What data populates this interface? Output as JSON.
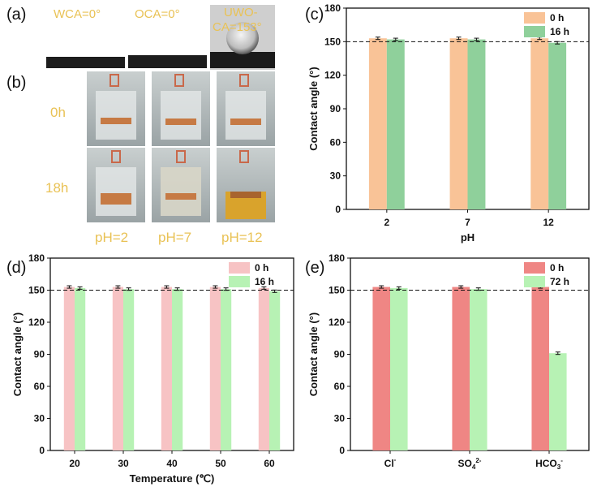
{
  "panel_labels": {
    "a": "(a)",
    "b": "(b)",
    "c": "(c)",
    "d": "(d)",
    "e": "(e)"
  },
  "panel_a": {
    "wca": "WCA=0°",
    "oca": "OCA=0°",
    "uwoca_line1": "UWO-",
    "uwoca_line2": "CA=153°"
  },
  "panel_b": {
    "row_0h": "0h",
    "row_18h": "18h",
    "ph_labels": [
      "pH=2",
      "pH=7",
      "pH=12"
    ]
  },
  "colors": {
    "c_0h": "#f9c397",
    "c_16h": "#8fd09b",
    "d_0h": "#f7c3c4",
    "d_16h": "#b7f2b4",
    "e_0h": "#ef8684",
    "e_72h": "#b7f2b4",
    "photo_text": "#e9c255"
  },
  "chart_data": [
    {
      "id": "c",
      "type": "bar",
      "categories": [
        "2",
        "7",
        "12"
      ],
      "series": [
        {
          "name": "0 h",
          "values": [
            153,
            153,
            153
          ]
        },
        {
          "name": "16 h",
          "values": [
            152,
            152,
            149
          ]
        }
      ],
      "xlabel": "pH",
      "ylabel": "Contact angle (°)",
      "ylim": [
        0,
        180
      ],
      "yticks": [
        0,
        30,
        60,
        90,
        120,
        150,
        180
      ],
      "reference_line": 150,
      "legend_position": "top-right"
    },
    {
      "id": "d",
      "type": "bar",
      "categories": [
        "20",
        "30",
        "40",
        "50",
        "60"
      ],
      "series": [
        {
          "name": "0 h",
          "values": [
            153,
            153,
            153,
            153,
            152
          ]
        },
        {
          "name": "16 h",
          "values": [
            152,
            151,
            151,
            151,
            149
          ]
        }
      ],
      "xlabel": "Temperature (℃)",
      "ylabel": "Contact angle (°)",
      "ylim": [
        0,
        180
      ],
      "yticks": [
        0,
        30,
        60,
        90,
        120,
        150,
        180
      ],
      "reference_line": 150,
      "legend_position": "top-right"
    },
    {
      "id": "e",
      "type": "bar",
      "categories": [
        "Cl-",
        "SO42-",
        "HCO3-"
      ],
      "series": [
        {
          "name": "0 h",
          "values": [
            153,
            153,
            153
          ]
        },
        {
          "name": "72 h",
          "values": [
            152,
            151,
            91
          ]
        }
      ],
      "xlabel": "",
      "ylabel": "Contact angle (°)",
      "ylim": [
        0,
        180
      ],
      "yticks": [
        0,
        30,
        60,
        90,
        120,
        150,
        180
      ],
      "reference_line": 150,
      "legend_position": "top-right"
    }
  ]
}
